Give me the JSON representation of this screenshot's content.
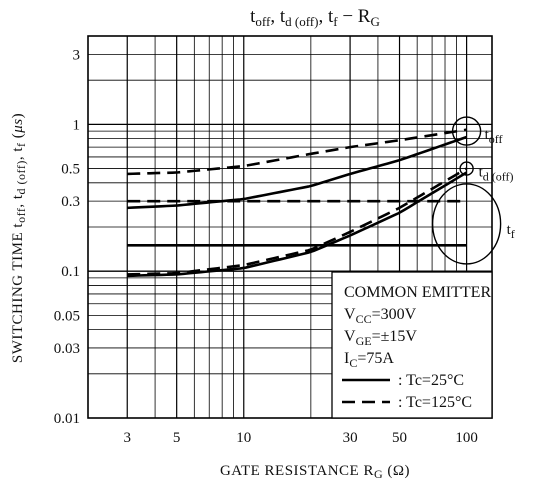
{
  "chart_data": {
    "type": "line",
    "title": "toff, td (off), tf − RG",
    "xlabel": "GATE RESISTANCE  RG  (Ω)",
    "ylabel": "SWITCHING TIME  toff, td (off), tf  (μs)",
    "xscale": "log",
    "yscale": "log",
    "xlim": [
      2,
      130
    ],
    "ylim": [
      0.01,
      4
    ],
    "x_ticks": [
      3,
      5,
      10,
      30,
      50,
      100
    ],
    "x_tick_labels": [
      "3",
      "5",
      "10",
      "30",
      "50",
      "100"
    ],
    "y_ticks": [
      0.01,
      0.03,
      0.05,
      0.1,
      0.3,
      0.5,
      1,
      3
    ],
    "y_tick_labels": [
      "0.01",
      "0.03",
      "0.05",
      "0.1",
      "0.3",
      "0.5",
      "1",
      "3"
    ],
    "grid": true,
    "series": [
      {
        "name": "toff",
        "condition": "Tc=25°C",
        "style": "solid",
        "x": [
          3,
          5,
          10,
          20,
          30,
          50,
          100
        ],
        "values": [
          0.27,
          0.28,
          0.31,
          0.38,
          0.46,
          0.57,
          0.82
        ]
      },
      {
        "name": "toff",
        "condition": "Tc=125°C",
        "style": "dashed",
        "x": [
          3,
          5,
          10,
          20,
          30,
          50,
          100
        ],
        "values": [
          0.46,
          0.47,
          0.52,
          0.63,
          0.7,
          0.78,
          0.92
        ]
      },
      {
        "name": "td (off)",
        "condition": "Tc=25°C",
        "style": "solid",
        "x": [
          3,
          5,
          10,
          20,
          30,
          50,
          100
        ],
        "values": [
          0.093,
          0.095,
          0.105,
          0.135,
          0.175,
          0.25,
          0.47
        ]
      },
      {
        "name": "td (off)",
        "condition": "Tc=125°C",
        "style": "dashed",
        "x": [
          3,
          5,
          10,
          20,
          30,
          50,
          100
        ],
        "values": [
          0.095,
          0.097,
          0.11,
          0.14,
          0.185,
          0.27,
          0.5
        ]
      },
      {
        "name": "tf",
        "condition": "Tc=25°C",
        "style": "solid",
        "x": [
          3,
          100
        ],
        "values": [
          0.15,
          0.15
        ]
      },
      {
        "name": "tf",
        "condition": "Tc=125°C",
        "style": "dashed",
        "x": [
          3,
          100
        ],
        "values": [
          0.3,
          0.3
        ]
      }
    ],
    "legend": {
      "placement": "bottom-right",
      "lines": [
        "COMMON EMITTER",
        "VCC=300V",
        "VGE=±15V",
        "IC=75A"
      ],
      "entries": [
        {
          "label": ": Tc=25°C",
          "style": "solid"
        },
        {
          "label": ": Tc=125°C",
          "style": "dashed"
        }
      ]
    }
  }
}
